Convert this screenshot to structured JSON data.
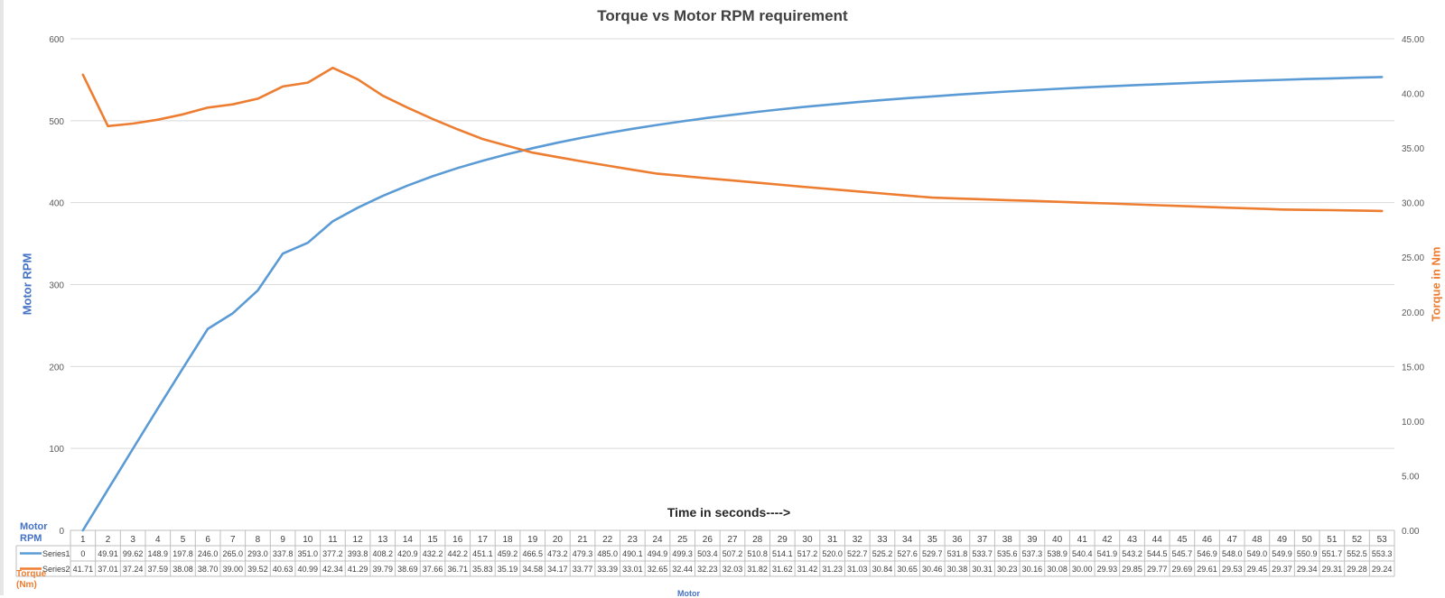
{
  "chart_data": {
    "type": "line",
    "title": "Torque vs Motor RPM requirement",
    "xlabel": "Time in seconds---->",
    "ylabel": "Motor RPM",
    "ylabel_right": "Torque in Nm",
    "ylim": [
      0,
      600
    ],
    "ylim_right": [
      0,
      45
    ],
    "yticks": [
      "0",
      "100",
      "200",
      "300",
      "400",
      "500",
      "600"
    ],
    "yticks_right": [
      "0.00",
      "5.00",
      "10.00",
      "15.00",
      "20.00",
      "25.00",
      "30.00",
      "35.00",
      "40.00",
      "45.00"
    ],
    "grid": true,
    "legend": "data-table",
    "categories": [
      "1",
      "2",
      "3",
      "4",
      "5",
      "6",
      "7",
      "8",
      "9",
      "10",
      "11",
      "12",
      "13",
      "14",
      "15",
      "16",
      "17",
      "18",
      "19",
      "20",
      "21",
      "22",
      "23",
      "24",
      "25",
      "26",
      "27",
      "28",
      "29",
      "30",
      "31",
      "32",
      "33",
      "34",
      "35",
      "36",
      "37",
      "38",
      "39",
      "40",
      "41",
      "42",
      "43",
      "44",
      "45",
      "46",
      "47",
      "48",
      "49",
      "50",
      "51",
      "52",
      "53"
    ],
    "series": [
      {
        "name": "Series1",
        "axis": "left",
        "color": "#5b9bd5",
        "values": [
          0,
          49.91,
          99.62,
          148.9,
          197.8,
          246.0,
          265.0,
          293.0,
          337.8,
          351.0,
          377.2,
          393.8,
          408.2,
          420.9,
          432.2,
          442.2,
          451.1,
          459.2,
          466.5,
          473.2,
          479.3,
          485.0,
          490.1,
          494.9,
          499.3,
          503.4,
          507.2,
          510.8,
          514.1,
          517.2,
          520.0,
          522.7,
          525.2,
          527.6,
          529.7,
          531.8,
          533.7,
          535.6,
          537.3,
          538.9,
          540.4,
          541.9,
          543.2,
          544.5,
          545.7,
          546.9,
          548.0,
          549.0,
          549.9,
          550.9,
          551.7,
          552.5,
          553.3
        ],
        "labels": [
          "0",
          "49.91",
          "99.62",
          "148.9",
          "197.8",
          "246.0",
          "265.0",
          "293.0",
          "337.8",
          "351.0",
          "377.2",
          "393.8",
          "408.2",
          "420.9",
          "432.2",
          "442.2",
          "451.1",
          "459.2",
          "466.5",
          "473.2",
          "479.3",
          "485.0",
          "490.1",
          "494.9",
          "499.3",
          "503.4",
          "507.2",
          "510.8",
          "514.1",
          "517.2",
          "520.0",
          "522.7",
          "525.2",
          "527.6",
          "529.7",
          "531.8",
          "533.7",
          "535.6",
          "537.3",
          "538.9",
          "540.4",
          "541.9",
          "543.2",
          "544.5",
          "545.7",
          "546.9",
          "548.0",
          "549.0",
          "549.9",
          "550.9",
          "551.7",
          "552.5",
          "553.3"
        ]
      },
      {
        "name": "Series2",
        "axis": "right",
        "color": "#ed7d31",
        "values": [
          41.71,
          37.01,
          37.24,
          37.59,
          38.08,
          38.7,
          39.0,
          39.52,
          40.63,
          40.99,
          42.34,
          41.29,
          39.79,
          38.69,
          37.66,
          36.71,
          35.83,
          35.19,
          34.58,
          34.17,
          33.77,
          33.39,
          33.01,
          32.65,
          32.44,
          32.23,
          32.03,
          31.82,
          31.62,
          31.42,
          31.23,
          31.03,
          30.84,
          30.65,
          30.46,
          30.38,
          30.31,
          30.23,
          30.16,
          30.08,
          30.0,
          29.93,
          29.85,
          29.77,
          29.69,
          29.61,
          29.53,
          29.45,
          29.37,
          29.34,
          29.31,
          29.28,
          29.24
        ],
        "labels": [
          "41.71",
          "37.01",
          "37.24",
          "37.59",
          "38.08",
          "38.70",
          "39.00",
          "39.52",
          "40.63",
          "40.99",
          "42.34",
          "41.29",
          "39.79",
          "38.69",
          "37.66",
          "36.71",
          "35.83",
          "35.19",
          "34.58",
          "34.17",
          "33.77",
          "33.39",
          "33.01",
          "32.65",
          "32.44",
          "32.23",
          "32.03",
          "31.82",
          "31.62",
          "31.42",
          "31.23",
          "31.03",
          "30.84",
          "30.65",
          "30.46",
          "30.38",
          "30.31",
          "30.23",
          "30.16",
          "30.08",
          "30.00",
          "29.93",
          "29.85",
          "29.77",
          "29.69",
          "29.61",
          "29.53",
          "29.45",
          "29.37",
          "29.34",
          "29.31",
          "29.28",
          "29.24"
        ]
      }
    ]
  },
  "labels": {
    "legend_left_top": "Motor RPM",
    "legend_left_bottom": "Torque (Nm)",
    "bottom_cut": "Motor"
  }
}
